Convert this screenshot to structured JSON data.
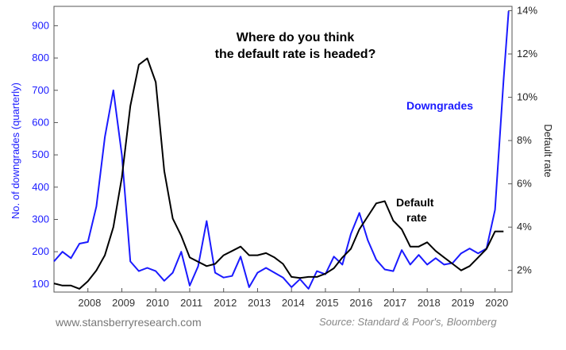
{
  "footer": {
    "website": "www.stansberryresearch.com",
    "source": "Source: Standard & Poor's, Bloomberg"
  },
  "chart_data": {
    "type": "line",
    "title": "Where do you think the default rate is headed?",
    "title_lines": [
      "Where do you think",
      "the default rate is headed?"
    ],
    "xlabel": "",
    "ylabel_left": "No. of downgrades (quarterly)",
    "ylabel_right": "Default rate",
    "x_ticks": [
      "2008",
      "2009",
      "2010",
      "2011",
      "2012",
      "2013",
      "2014",
      "2015",
      "2016",
      "2017",
      "2018",
      "2019",
      "2020"
    ],
    "xlim": [
      2007.0,
      2020.5
    ],
    "ylim_left": [
      75,
      960
    ],
    "yticks_left": [
      "100",
      "200",
      "300",
      "400",
      "500",
      "600",
      "700",
      "800",
      "900"
    ],
    "ylim_right": [
      1.0,
      14.2
    ],
    "yticks_right": [
      "2%",
      "4%",
      "6%",
      "8%",
      "10%",
      "12%",
      "14%"
    ],
    "grid": false,
    "series": [
      {
        "name": "Downgrades",
        "axis": "left",
        "color": "#1a1aff",
        "x": [
          2007.0,
          2007.25,
          2007.5,
          2007.75,
          2008.0,
          2008.25,
          2008.5,
          2008.75,
          2009.0,
          2009.25,
          2009.5,
          2009.75,
          2010.0,
          2010.25,
          2010.5,
          2010.75,
          2011.0,
          2011.25,
          2011.5,
          2011.75,
          2012.0,
          2012.25,
          2012.5,
          2012.75,
          2013.0,
          2013.25,
          2013.5,
          2013.75,
          2014.0,
          2014.25,
          2014.5,
          2014.75,
          2015.0,
          2015.25,
          2015.5,
          2015.75,
          2016.0,
          2016.25,
          2016.5,
          2016.75,
          2017.0,
          2017.25,
          2017.5,
          2017.75,
          2018.0,
          2018.25,
          2018.5,
          2018.75,
          2019.0,
          2019.25,
          2019.5,
          2019.75,
          2020.0,
          2020.25
        ],
        "values": [
          170,
          200,
          180,
          225,
          230,
          340,
          555,
          700,
          500,
          170,
          140,
          150,
          140,
          110,
          135,
          200,
          95,
          155,
          295,
          135,
          120,
          125,
          185,
          90,
          135,
          150,
          135,
          120,
          90,
          115,
          85,
          140,
          130,
          185,
          160,
          255,
          320,
          235,
          175,
          145,
          140,
          205,
          160,
          190,
          160,
          180,
          160,
          165,
          195,
          210,
          195,
          210,
          330,
          730
        ],
        "extra_x": [
          2020.4
        ],
        "extra_values": [
          945
        ]
      },
      {
        "name": "Default rate",
        "axis": "right",
        "color": "#000000",
        "x": [
          2007.0,
          2007.25,
          2007.5,
          2007.75,
          2008.0,
          2008.25,
          2008.5,
          2008.75,
          2009.0,
          2009.25,
          2009.5,
          2009.75,
          2010.0,
          2010.25,
          2010.5,
          2010.75,
          2011.0,
          2011.25,
          2011.5,
          2011.75,
          2012.0,
          2012.25,
          2012.5,
          2012.75,
          2013.0,
          2013.25,
          2013.5,
          2013.75,
          2014.0,
          2014.25,
          2014.5,
          2014.75,
          2015.0,
          2015.25,
          2015.5,
          2015.75,
          2016.0,
          2016.25,
          2016.5,
          2016.75,
          2017.0,
          2017.25,
          2017.5,
          2017.75,
          2018.0,
          2018.25,
          2018.5,
          2018.75,
          2019.0,
          2019.25,
          2019.5,
          2019.75,
          2020.0,
          2020.25
        ],
        "values": [
          1.4,
          1.3,
          1.3,
          1.15,
          1.5,
          2.0,
          2.7,
          4.0,
          6.3,
          9.6,
          11.5,
          11.8,
          10.7,
          6.6,
          4.4,
          3.6,
          2.6,
          2.4,
          2.2,
          2.3,
          2.7,
          2.9,
          3.1,
          2.7,
          2.7,
          2.8,
          2.6,
          2.3,
          1.7,
          1.65,
          1.7,
          1.7,
          1.85,
          2.1,
          2.6,
          3.0,
          3.9,
          4.5,
          5.1,
          5.2,
          4.3,
          3.9,
          3.1,
          3.1,
          3.3,
          2.9,
          2.6,
          2.3,
          2.0,
          2.2,
          2.6,
          3.0,
          3.8,
          3.8
        ]
      }
    ],
    "annotations": [
      {
        "text": "Downgrades",
        "color": "#1a1aff"
      },
      {
        "text_lines": [
          "Default",
          "rate"
        ],
        "color": "#000000"
      }
    ]
  }
}
